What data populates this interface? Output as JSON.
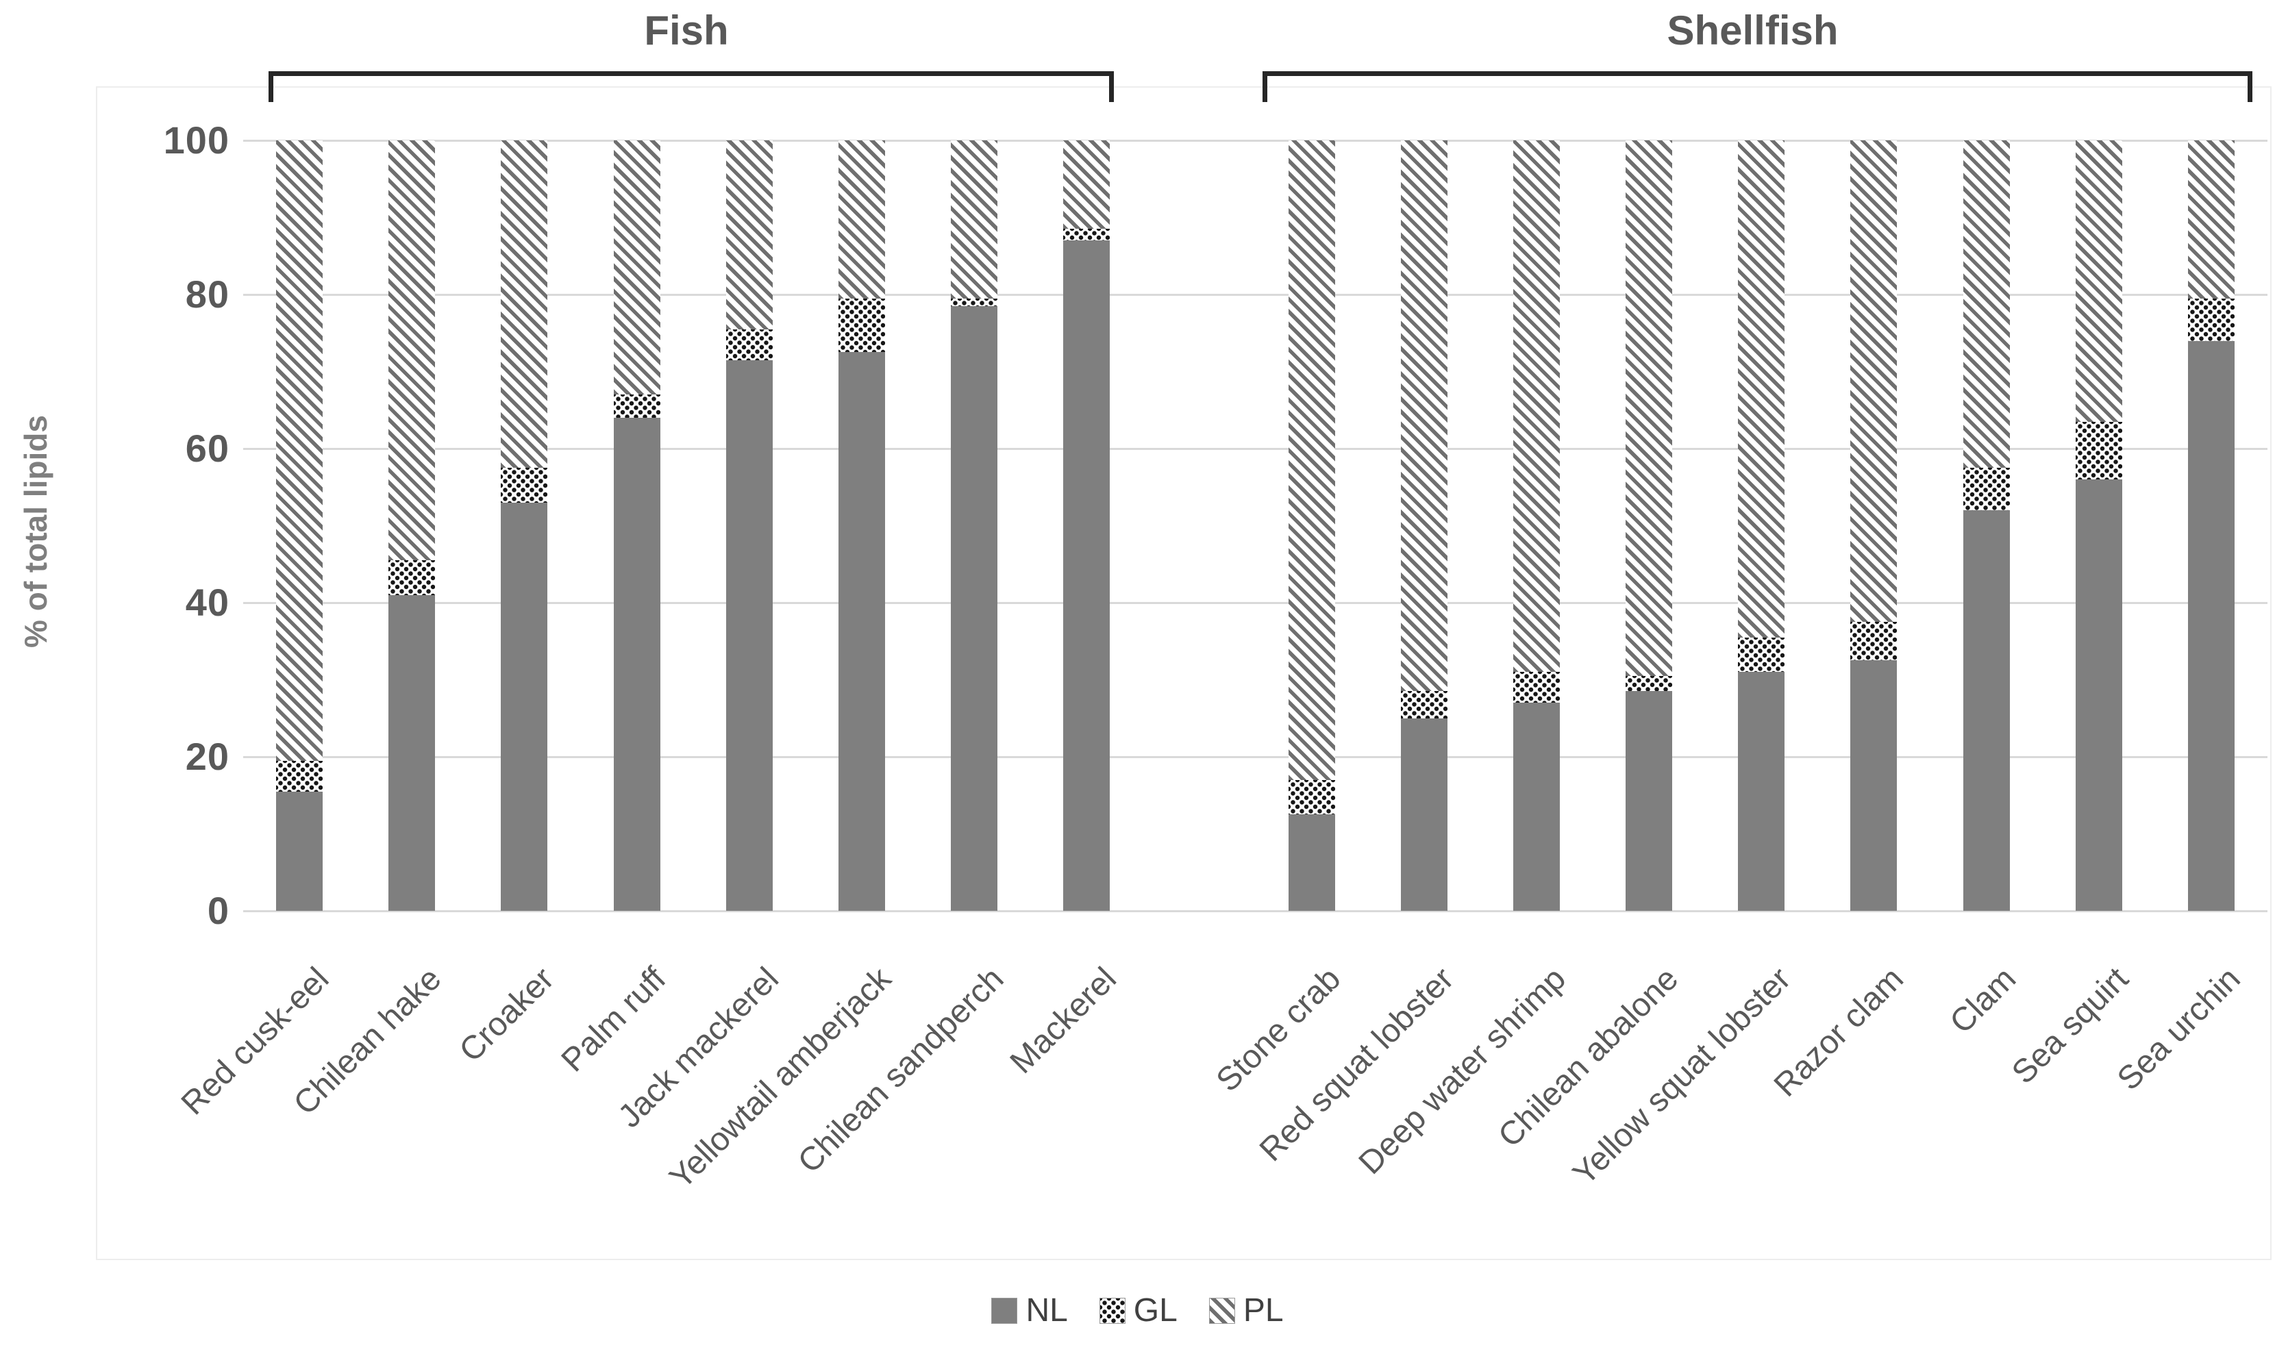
{
  "header": {
    "groups": [
      "Fish",
      "Shellfish"
    ]
  },
  "colors": {
    "nl_fill": "#7f7f7f",
    "gl_dot": "#161616",
    "pl_hatch_stripe": "#6f6f6f",
    "gridline": "#d9d9d9",
    "axis_text": "#595959",
    "bracket": "#262626",
    "y_title_text": "#7f7f7f",
    "legend_text": "#404040",
    "background": "#ffffff"
  },
  "chart_data": {
    "type": "bar",
    "stacked": true,
    "title": "",
    "xlabel": "",
    "ylabel": "% of total lipids",
    "ylim": [
      0,
      100
    ],
    "yticks": [
      0,
      20,
      40,
      60,
      80,
      100
    ],
    "grid": true,
    "legend_position": "bottom",
    "groups": [
      {
        "label": "Fish",
        "count": 8
      },
      {
        "label": "Shellfish",
        "count": 9
      }
    ],
    "categories": [
      "Red cusk-eel",
      "Chilean hake",
      "Croaker",
      "Palm ruff",
      "Jack mackerel",
      "Yellowtail amberjack",
      "Chilean sandperch",
      "Mackerel",
      "Stone crab",
      "Red squat lobster",
      "Deep water shrimp",
      "Chilean abalone",
      "Yellow squat lobster",
      "Razor clam",
      "Clam",
      "Sea squirt",
      "Sea urchin"
    ],
    "series": [
      {
        "name": "NL",
        "values": [
          15.5,
          41,
          53,
          64,
          71.5,
          72.5,
          78.5,
          87,
          12.5,
          25,
          27,
          28.5,
          31,
          32.5,
          52,
          56,
          74
        ]
      },
      {
        "name": "GL",
        "values": [
          4,
          4.5,
          4.5,
          3,
          4,
          7,
          1,
          1.5,
          4.5,
          3.5,
          4,
          2,
          4.5,
          5,
          5.5,
          7.5,
          5.5
        ]
      },
      {
        "name": "PL",
        "values": [
          80.5,
          54.5,
          42.5,
          33,
          24.5,
          20.5,
          20.5,
          11.5,
          83,
          71.5,
          69,
          69.5,
          64.5,
          62.5,
          42.5,
          36.5,
          20.5
        ]
      }
    ]
  }
}
